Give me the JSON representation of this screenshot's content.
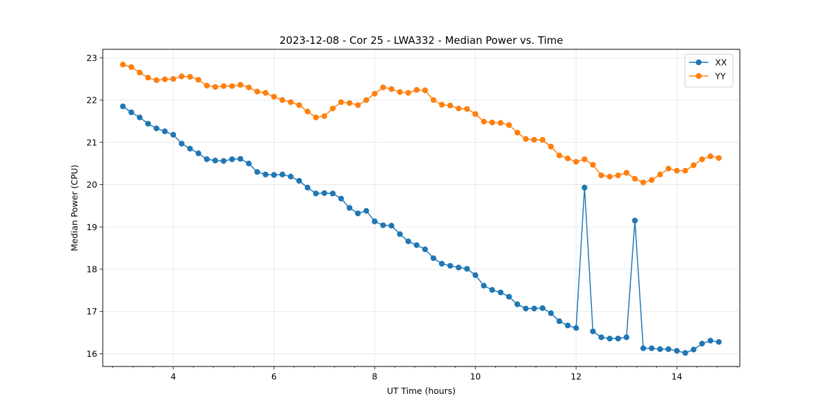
{
  "chart_data": {
    "type": "line",
    "title": "2023-12-08 - Cor 25 - LWA332 - Median Power vs. Time",
    "xlabel": "UT Time (hours)",
    "ylabel": "Median Power (CPU)",
    "xlim": [
      2.6,
      15.25
    ],
    "ylim": [
      15.7,
      23.2
    ],
    "xticks": [
      4,
      6,
      8,
      10,
      12,
      14
    ],
    "yticks": [
      16,
      17,
      18,
      19,
      20,
      21,
      22,
      23
    ],
    "grid": true,
    "legend_position": "top-right",
    "x": [
      3.0,
      3.167,
      3.333,
      3.5,
      3.667,
      3.833,
      4.0,
      4.167,
      4.333,
      4.5,
      4.667,
      4.833,
      5.0,
      5.167,
      5.333,
      5.5,
      5.667,
      5.833,
      6.0,
      6.167,
      6.333,
      6.5,
      6.667,
      6.833,
      7.0,
      7.167,
      7.333,
      7.5,
      7.667,
      7.833,
      8.0,
      8.167,
      8.333,
      8.5,
      8.667,
      8.833,
      9.0,
      9.167,
      9.333,
      9.5,
      9.667,
      9.833,
      10.0,
      10.167,
      10.333,
      10.5,
      10.667,
      10.833,
      11.0,
      11.167,
      11.333,
      11.5,
      11.667,
      11.833,
      12.0,
      12.167,
      12.333,
      12.5,
      12.667,
      12.833,
      13.0,
      13.167,
      13.333,
      13.5,
      13.667,
      13.833,
      14.0,
      14.167,
      14.333,
      14.5,
      14.667,
      14.833
    ],
    "series": [
      {
        "name": "XX",
        "color": "#1f77b4",
        "values": [
          21.85,
          21.71,
          21.59,
          21.44,
          21.33,
          21.26,
          21.18,
          20.97,
          20.85,
          20.74,
          20.6,
          20.57,
          20.56,
          20.6,
          20.61,
          20.5,
          20.3,
          20.24,
          20.23,
          20.24,
          20.19,
          20.09,
          19.93,
          19.79,
          19.8,
          19.79,
          19.67,
          19.45,
          19.32,
          19.38,
          19.13,
          19.04,
          19.03,
          18.83,
          18.66,
          18.57,
          18.47,
          18.26,
          18.13,
          18.08,
          18.04,
          18.01,
          17.86,
          17.61,
          17.51,
          17.45,
          17.35,
          17.17,
          17.07,
          17.07,
          17.08,
          16.96,
          16.77,
          16.67,
          16.61,
          19.93,
          16.53,
          16.39,
          16.36,
          16.36,
          16.39,
          19.15,
          16.13,
          16.13,
          16.11,
          16.11,
          16.07,
          16.02,
          16.1,
          16.24,
          16.31,
          16.28
        ]
      },
      {
        "name": "YY",
        "color": "#ff7f0e",
        "values": [
          22.84,
          22.78,
          22.65,
          22.53,
          22.47,
          22.49,
          22.5,
          22.56,
          22.55,
          22.48,
          22.34,
          22.31,
          22.33,
          22.33,
          22.36,
          22.3,
          22.2,
          22.17,
          22.08,
          22.0,
          21.95,
          21.88,
          21.73,
          21.59,
          21.62,
          21.8,
          21.95,
          21.93,
          21.88,
          22.0,
          22.15,
          22.3,
          22.26,
          22.19,
          22.17,
          22.24,
          22.23,
          22.0,
          21.89,
          21.87,
          21.8,
          21.79,
          21.67,
          21.49,
          21.47,
          21.46,
          21.41,
          21.23,
          21.08,
          21.06,
          21.06,
          20.9,
          20.69,
          20.62,
          20.54,
          20.6,
          20.47,
          20.22,
          20.19,
          20.22,
          20.28,
          20.14,
          20.05,
          20.11,
          20.24,
          20.38,
          20.33,
          20.33,
          20.46,
          20.6,
          20.67,
          20.63
        ]
      }
    ]
  }
}
